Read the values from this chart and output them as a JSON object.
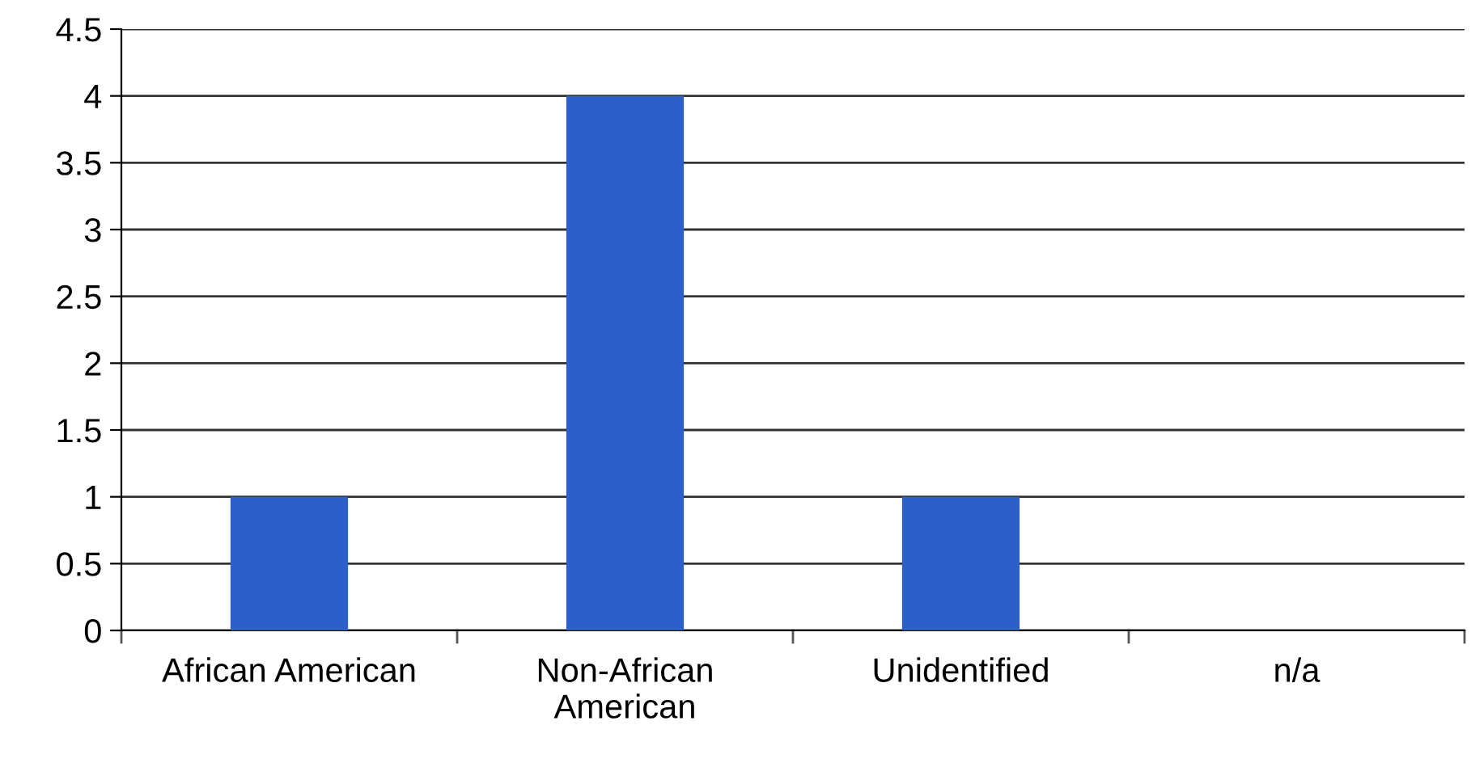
{
  "chart_data": {
    "type": "bar",
    "categories": [
      "African American",
      "Non-African\nAmerican",
      "Unidentified",
      "n/a"
    ],
    "values": [
      1,
      4,
      1,
      0
    ],
    "color": "#2d5fc8",
    "ylim": [
      0,
      4.5
    ],
    "yticks": [
      0,
      0.5,
      1,
      1.5,
      2,
      2.5,
      3,
      3.5,
      4,
      4.5
    ],
    "grid": "y",
    "legend": false
  }
}
